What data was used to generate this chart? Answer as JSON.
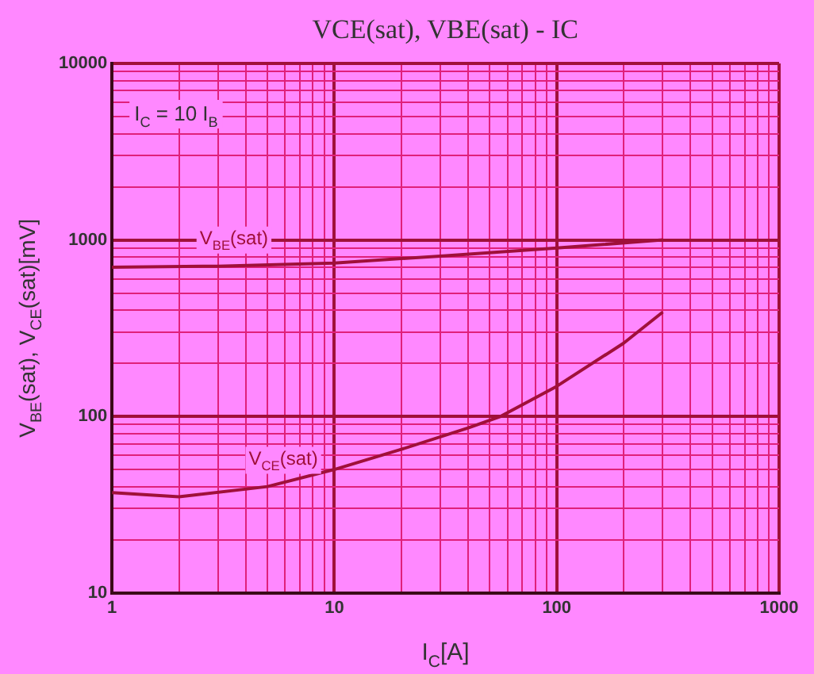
{
  "chart_data": {
    "type": "line",
    "title": "VCE(sat), VBE(sat) - IC",
    "xlabel": "I$_{C}$[A]",
    "ylabel": "V$_{BE}$(sat), V$_{CE}$(sat)[mV]",
    "annotations": [
      "I$_{C}$ = 10 I$_{B}$"
    ],
    "series": [
      {
        "name": "V$_{BE}$(sat)",
        "color": "#a0103a",
        "x": [
          1,
          3,
          10,
          30,
          100,
          300
        ],
        "values": [
          700,
          710,
          740,
          810,
          900,
          1000
        ]
      },
      {
        "name": "V$_{CE}$(sat)",
        "color": "#a0103a",
        "x": [
          1,
          2,
          5,
          10,
          20,
          40,
          56,
          100,
          200,
          300
        ],
        "values": [
          37,
          35,
          40,
          50,
          65,
          86,
          100,
          148,
          260,
          390
        ]
      }
    ],
    "log": "xy",
    "xlim": [
      1,
      1000
    ],
    "ylim": [
      10,
      10000
    ],
    "xticks": [
      1,
      {
        "value": 2,
        "label": null
      },
      {
        "value": 3,
        "label": null
      },
      {
        "value": 4,
        "label": null
      },
      {
        "value": 5,
        "label": null
      },
      {
        "value": 6,
        "label": null
      },
      {
        "value": 7,
        "label": null
      },
      {
        "value": 8,
        "label": null
      },
      {
        "value": 9,
        "label": null
      },
      10,
      {
        "value": 20,
        "label": null
      },
      {
        "value": 30,
        "label": null
      },
      {
        "value": 40,
        "label": null
      },
      {
        "value": 50,
        "label": null
      },
      {
        "value": 60,
        "label": null
      },
      {
        "value": 70,
        "label": null
      },
      {
        "value": 80,
        "label": null
      },
      {
        "value": 90,
        "label": null
      },
      100,
      {
        "value": 200,
        "label": null
      },
      {
        "value": 300,
        "label": null
      },
      {
        "value": 400,
        "label": null
      },
      {
        "value": 500,
        "label": null
      },
      {
        "value": 600,
        "label": null
      },
      {
        "value": 700,
        "label": null
      },
      {
        "value": 800,
        "label": null
      },
      {
        "value": 900,
        "label": null
      },
      1000
    ],
    "yticks": [
      10,
      {
        "value": 20,
        "label": null
      },
      {
        "value": 30,
        "label": null
      },
      {
        "value": 40,
        "label": null
      },
      {
        "value": 50,
        "label": null
      },
      {
        "value": 60,
        "label": null
      },
      {
        "value": 70,
        "label": null
      },
      {
        "value": 80,
        "label": null
      },
      {
        "value": 90,
        "label": null
      },
      100,
      {
        "value": 200,
        "label": null
      },
      {
        "value": 300,
        "label": null
      },
      {
        "value": 400,
        "label": null
      },
      {
        "value": 500,
        "label": null
      },
      {
        "value": 600,
        "label": null
      },
      {
        "value": 700,
        "label": null
      },
      {
        "value": 800,
        "label": null
      },
      {
        "value": 900,
        "label": null
      },
      1000,
      {
        "value": 2000,
        "label": null
      },
      {
        "value": 3000,
        "label": null
      },
      {
        "value": 4000,
        "label": null
      },
      {
        "value": 5000,
        "label": null
      },
      {
        "value": 6000,
        "label": null
      },
      {
        "value": 7000,
        "label": null
      },
      {
        "value": 8000,
        "label": null
      },
      {
        "value": 9000,
        "label": null
      },
      10000
    ],
    "grid": true,
    "marker": "none",
    "line_style": "solid",
    "legend": false
  }
}
